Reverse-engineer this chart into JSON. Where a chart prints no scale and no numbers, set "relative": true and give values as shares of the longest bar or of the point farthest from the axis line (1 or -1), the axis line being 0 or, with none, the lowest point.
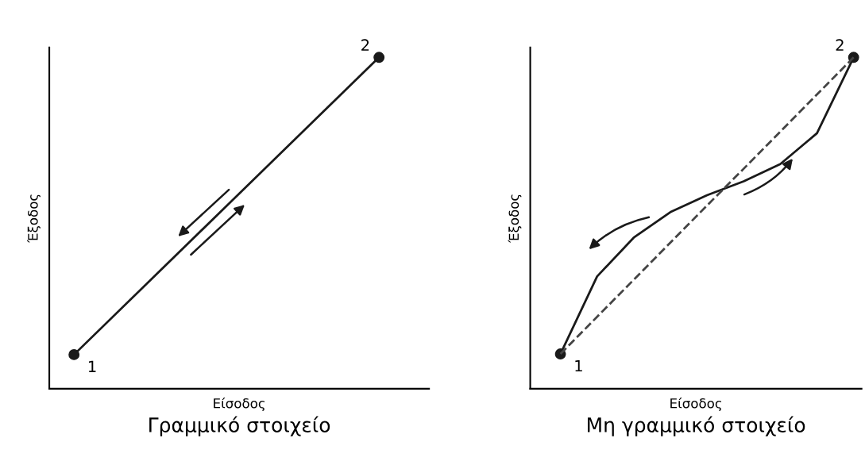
{
  "chart_data": [
    {
      "type": "line",
      "title": "Γραμμικό στοιχείο",
      "xlabel": "Είσοδος",
      "ylabel": "Έξοδος",
      "relative": true,
      "tick_labels": false,
      "categories": [
        null,
        null
      ],
      "series": [
        {
          "color": "#1a1a1a",
          "values": [
            0.103,
            1
          ],
          "marker": "circle",
          "line_style": "solid"
        }
      ],
      "annotations": [
        "1",
        "2"
      ]
    },
    {
      "type": "line",
      "title": "Μη γραμμικό στοιχείο",
      "xlabel": "Είσοδος",
      "ylabel": "Έξοδος",
      "relative": true,
      "tick_labels": false,
      "categories": [
        null,
        null,
        null,
        null,
        null,
        null,
        null,
        null,
        null
      ],
      "series": [
        {
          "color": "#1a1a1a",
          "values": [
            0.105,
            0.339,
            0.456,
            0.533,
            0.584,
            0.626,
            0.678,
            0.771,
            1
          ],
          "marker": "none",
          "line_style": "solid"
        },
        {
          "color": "#444444",
          "values": [
            0.105,
            0.217,
            0.329,
            0.441,
            0.553,
            0.664,
            0.776,
            0.888,
            1
          ],
          "marker": "none",
          "line_style": "dashed"
        }
      ],
      "annotations": [
        "1",
        "2"
      ]
    }
  ]
}
